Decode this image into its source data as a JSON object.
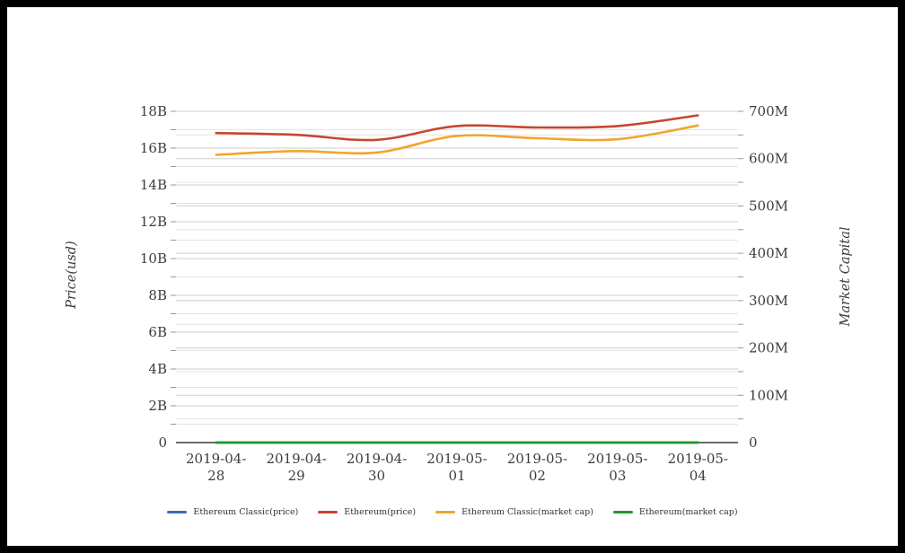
{
  "page": {
    "background_color": "#ffffff",
    "frame_color": "#000000"
  },
  "chart_data": {
    "type": "line",
    "title": "",
    "x_categories": [
      "2019-04-28",
      "2019-04-29",
      "2019-04-30",
      "2019-05-01",
      "2019-05-02",
      "2019-05-03",
      "2019-05-04"
    ],
    "left_axis": {
      "title": "Price(usd)",
      "min": 0,
      "max": 18,
      "unit": "B",
      "major_step": 2,
      "minor_step": 1,
      "tick_labels": [
        "0",
        "2B",
        "4B",
        "6B",
        "8B",
        "10B",
        "12B",
        "14B",
        "16B",
        "18B"
      ]
    },
    "right_axis": {
      "title": "Market Capital",
      "min": 0,
      "max": 700,
      "unit": "M",
      "major_step": 100,
      "minor_step": 50,
      "tick_labels": [
        "0",
        "100M",
        "200M",
        "300M",
        "400M",
        "500M",
        "600M",
        "700M"
      ]
    },
    "grid": {
      "minor_color": "#e4e4e4",
      "major_color": "#cdcdcd",
      "axis_line_color": "#3c3c3c",
      "tick_color": "#999999"
    },
    "series": [
      {
        "name": "Ethereum Classic(price)",
        "color": "#3a6bbd",
        "axis": "left",
        "width": 2.4,
        "values": [
          0,
          0,
          0,
          0,
          0,
          0,
          0
        ]
      },
      {
        "name": "Ethereum(price)",
        "color": "#c5472f",
        "axis": "left",
        "width": 2.6,
        "values": [
          16.82,
          16.72,
          16.45,
          17.2,
          17.12,
          17.2,
          17.78
        ]
      },
      {
        "name": "Ethereum Classic(market cap)",
        "color": "#f2a52c",
        "axis": "right",
        "width": 2.6,
        "values": [
          608,
          616,
          613,
          648,
          643,
          641,
          670
        ]
      },
      {
        "name": "Ethereum(market cap)",
        "color": "#22982d",
        "axis": "right",
        "width": 2.8,
        "values": [
          0,
          0,
          0,
          0,
          0,
          0,
          0
        ]
      }
    ],
    "legend_position": "bottom",
    "text_color": "#3c3c3c"
  },
  "legend": {
    "items": [
      {
        "label": "Ethereum Classic(price)",
        "color": "#3a6bbd"
      },
      {
        "label": "Ethereum(price)",
        "color": "#c5472f"
      },
      {
        "label": "Ethereum Classic(market cap)",
        "color": "#f2a52c"
      },
      {
        "label": "Ethereum(market cap)",
        "color": "#22982d"
      }
    ]
  }
}
